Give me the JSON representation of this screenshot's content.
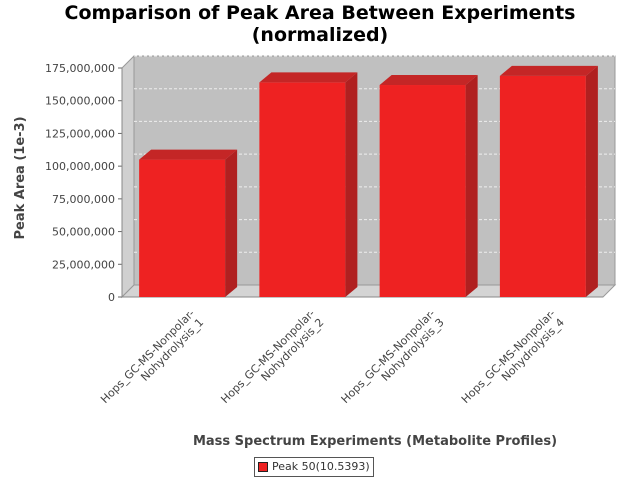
{
  "chart_data": {
    "type": "bar",
    "title_lines": [
      "Comparison of Peak Area Between Experiments",
      "(normalized)"
    ],
    "xlabel": "Mass Spectrum Experiments (Metabolite Profiles)",
    "ylabel": "Peak Area (1e-3)",
    "categories": [
      [
        "Hops_GC-MS-Nonpolar-",
        "Nohydrolysis_1"
      ],
      [
        "Hops_GC-MS-Nonpolar-",
        "Nohydrolysis_2"
      ],
      [
        "Hops_GC-MS-Nonpolar-",
        "Nohydrolysis_3"
      ],
      [
        "Hops_GC-MS-Nonpolar-",
        "Nohydrolysis_4"
      ]
    ],
    "series": [
      {
        "name": "Peak 50(10.5393)",
        "color": "#ee2222",
        "values": [
          105000000,
          164000000,
          162000000,
          169000000
        ]
      }
    ],
    "ylim": [
      0,
      175000000
    ],
    "yticks": [
      0,
      25000000,
      50000000,
      75000000,
      100000000,
      125000000,
      150000000,
      175000000
    ],
    "ytick_labels": [
      "0",
      "25,000,000",
      "50,000,000",
      "75,000,000",
      "100,000,000",
      "125,000,000",
      "150,000,000",
      "175,000,000"
    ],
    "grid": true,
    "legend_position": "bottom"
  },
  "colors": {
    "plot_background": "#c0c0c0",
    "bar_front": "#ee2222",
    "bar_side": "#b02020",
    "bar_top": "#c42626",
    "gridline": "#eeeeee"
  }
}
